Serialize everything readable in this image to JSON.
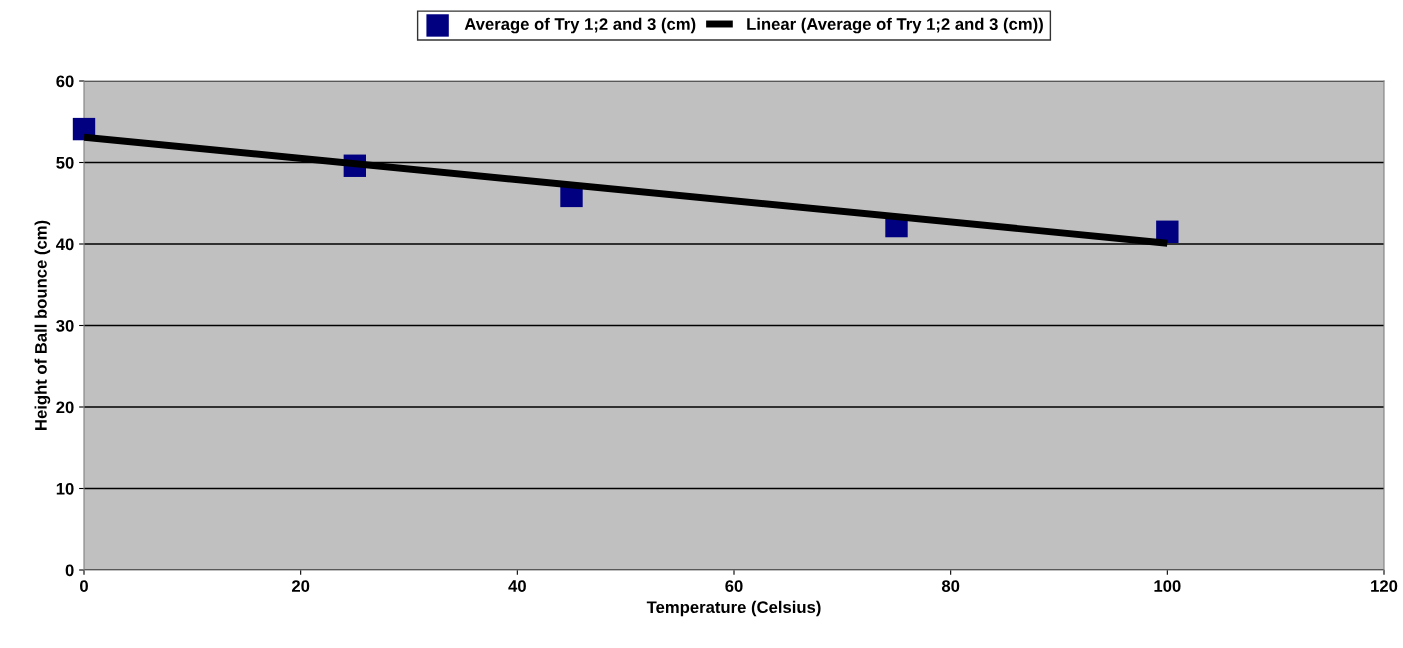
{
  "chart_data": {
    "type": "scatter",
    "xlabel": "Temperature (Celsius)",
    "ylabel": "Height of Ball bounce (cm)",
    "xlim": [
      0,
      120
    ],
    "xticks": [
      0,
      20,
      40,
      60,
      80,
      100,
      120
    ],
    "ylim": [
      0,
      60
    ],
    "yticks": [
      0,
      10,
      20,
      30,
      40,
      50,
      60
    ],
    "grid": "y",
    "legend": "top",
    "series": [
      {
        "name": "Average of Try 1;2 and 3 (cm)",
        "color": "#000080",
        "marker": "square",
        "x": [
          0,
          25,
          45,
          75,
          100
        ],
        "values": [
          54.1,
          49.6,
          45.9,
          42.2,
          41.5
        ]
      },
      {
        "name": "Linear (Average of Try 1;2 and 3 (cm))",
        "type": "line",
        "marker": "none",
        "color": "#000000",
        "x": [
          0,
          100
        ],
        "values": [
          53.1,
          40.1
        ]
      }
    ]
  }
}
